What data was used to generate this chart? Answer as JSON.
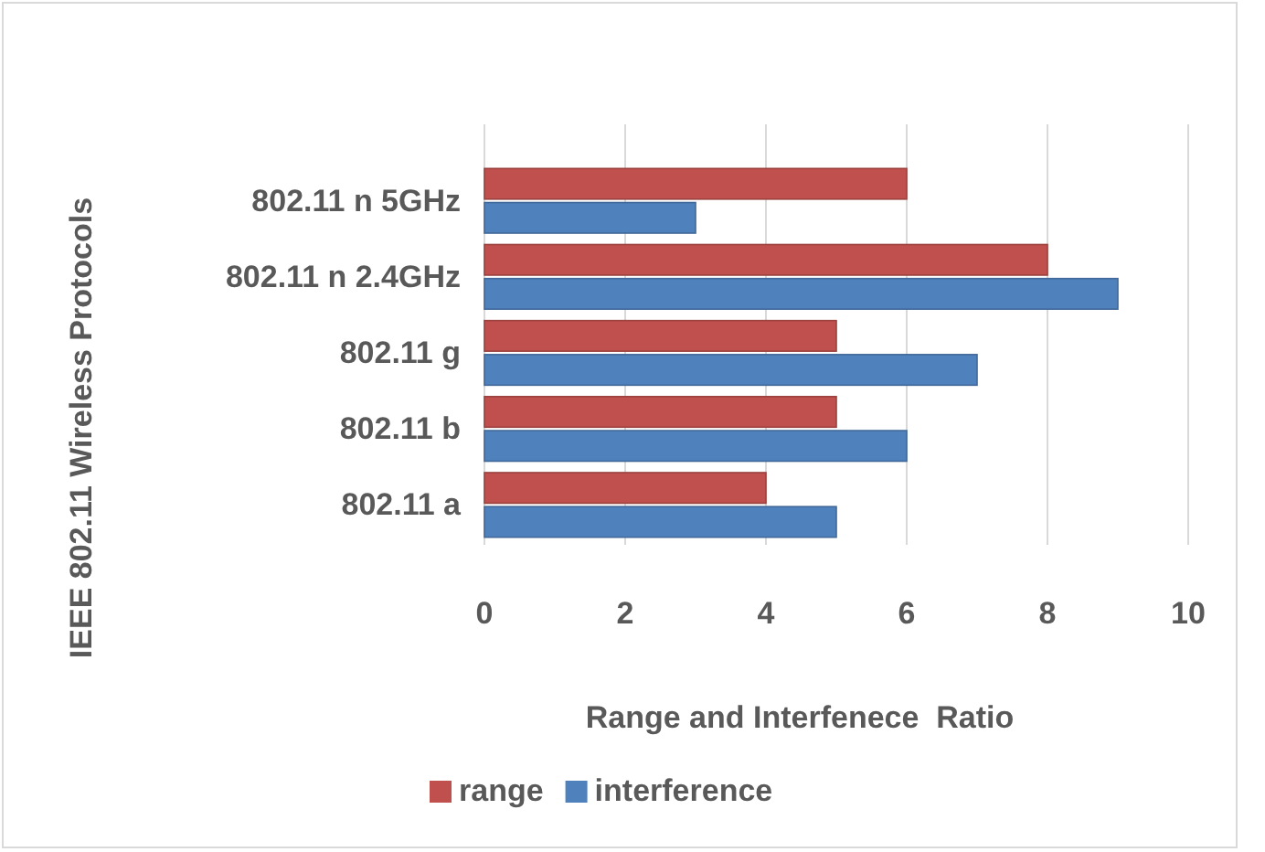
{
  "chart_data": {
    "type": "bar",
    "orientation": "horizontal",
    "xlabel": "Range and Interfenece  Ratio",
    "ylabel": "IEEE 802.11 Wireless Protocols",
    "categories": [
      "802.11 n 5GHz",
      "802.11 n 2.4GHz",
      "802.11 g",
      "802.11 b",
      "802.11 a"
    ],
    "series": [
      {
        "name": "range",
        "color": "#c0504d",
        "values": [
          6,
          8,
          5,
          5,
          4
        ]
      },
      {
        "name": "interference",
        "color": "#4f81bd",
        "values": [
          3,
          9,
          7,
          6,
          5
        ]
      }
    ],
    "xlim": [
      0,
      10
    ],
    "xticks": [
      0,
      2,
      4,
      6,
      8,
      10
    ],
    "grid": "x",
    "legend": "bottom"
  }
}
